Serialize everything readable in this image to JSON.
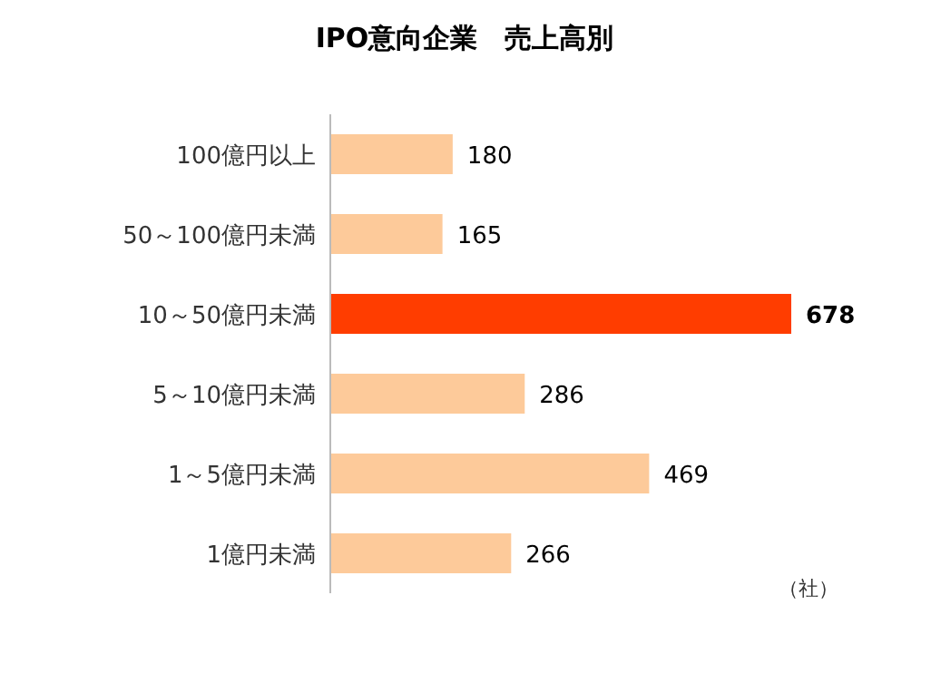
{
  "chart_data": {
    "type": "bar",
    "orientation": "horizontal",
    "title": "IPO意向企業　売上高別",
    "categories": [
      "100億円以上",
      "50～100億円未満",
      "10～50億円未満",
      "5～10億円未満",
      "1～5億円未満",
      "1億円未満"
    ],
    "values": [
      180,
      165,
      678,
      286,
      469,
      266
    ],
    "colors": [
      "#fdca9a",
      "#fdca9a",
      "#ff3d00",
      "#fdca9a",
      "#fdca9a",
      "#fdca9a"
    ],
    "data_labels": true,
    "annotations": [
      "（社）"
    ]
  }
}
